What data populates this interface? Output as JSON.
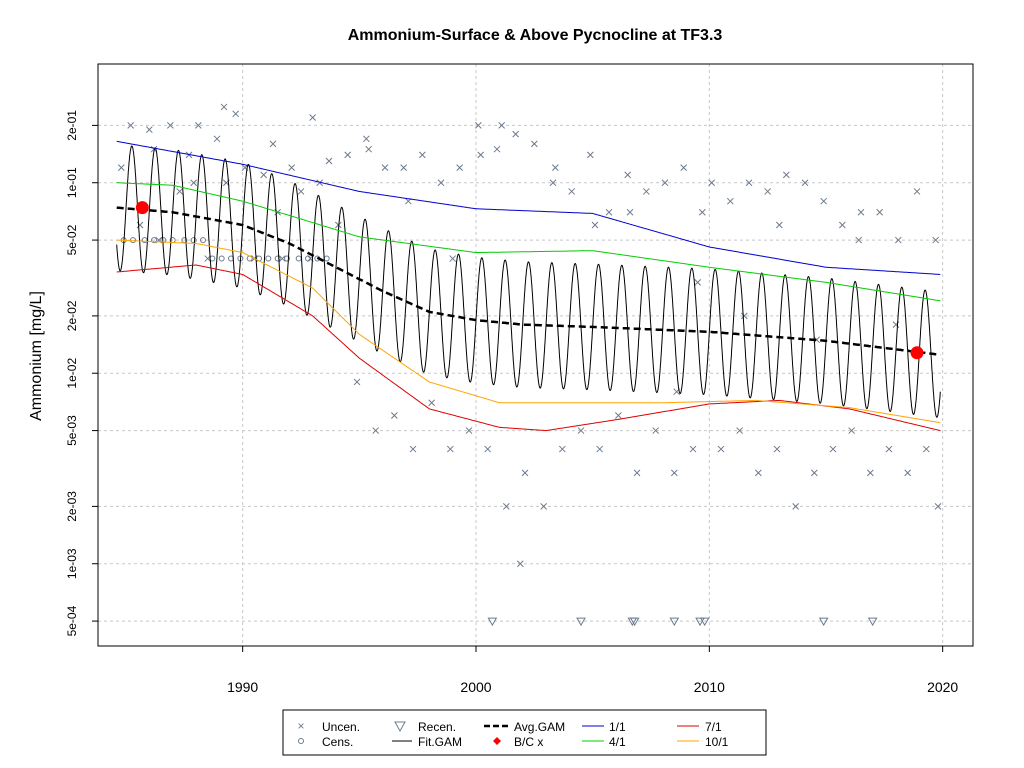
{
  "chart_data": {
    "type": "scatter",
    "title": "Ammonium-Surface & Above Pycnocline at TF3.3",
    "xlabel": "",
    "ylabel": "Ammonium [mg/L]",
    "y_scale": "log",
    "xlim": [
      1983.8,
      2021.3
    ],
    "ylim": [
      0.00037,
      0.42
    ],
    "x_ticks": [
      1990,
      2000,
      2010,
      2020
    ],
    "y_ticks": [
      {
        "value": 0.2,
        "label": "2e-01"
      },
      {
        "value": 0.1,
        "label": "1e-01"
      },
      {
        "value": 0.05,
        "label": "5e-02"
      },
      {
        "value": 0.02,
        "label": "2e-02"
      },
      {
        "value": 0.01,
        "label": "1e-02"
      },
      {
        "value": 0.005,
        "label": "5e-03"
      },
      {
        "value": 0.002,
        "label": "2e-03"
      },
      {
        "value": 0.001,
        "label": "1e-03"
      },
      {
        "value": 0.0005,
        "label": "5e-04"
      }
    ],
    "grid": true,
    "legend_placement": "bottom",
    "colors": {
      "points": "#6b7b8c",
      "fit": "#000000",
      "avg": "#000000",
      "bc": "#ff0000",
      "s1": "#0000cc",
      "s4": "#00cc00",
      "s7": "#dd0000",
      "s10": "#ffa500"
    },
    "series": [
      {
        "name": "1/1",
        "color": "#0000cc",
        "x": [
          1984.6,
          1990,
          1995,
          2000,
          2005,
          2010,
          2015,
          2019.9
        ],
        "y": [
          0.165,
          0.125,
          0.09,
          0.073,
          0.069,
          0.046,
          0.036,
          0.033
        ]
      },
      {
        "name": "4/1",
        "color": "#00cc00",
        "x": [
          1984.6,
          1987,
          1990,
          1995,
          2000,
          2005,
          2010,
          2015,
          2019.9
        ],
        "y": [
          0.1,
          0.097,
          0.08,
          0.052,
          0.043,
          0.044,
          0.036,
          0.03,
          0.024
        ]
      },
      {
        "name": "7/1",
        "color": "#dd0000",
        "x": [
          1984.6,
          1988,
          1990,
          1993,
          1995,
          1998,
          2001,
          2003,
          2006,
          2010,
          2013,
          2016,
          2019.9
        ],
        "y": [
          0.034,
          0.037,
          0.033,
          0.02,
          0.012,
          0.0065,
          0.0052,
          0.005,
          0.0057,
          0.0069,
          0.0072,
          0.0065,
          0.005
        ]
      },
      {
        "name": "10/1",
        "color": "#ffa500",
        "x": [
          1984.6,
          1988,
          1990,
          1993,
          1995,
          1998,
          2001,
          2004,
          2008,
          2012,
          2016,
          2019.9
        ],
        "y": [
          0.05,
          0.048,
          0.043,
          0.028,
          0.016,
          0.009,
          0.007,
          0.007,
          0.007,
          0.0072,
          0.0066,
          0.0055
        ]
      },
      {
        "name": "Avg.GAM",
        "color": "#000000",
        "x": [
          1984.6,
          1987,
          1990,
          1992,
          1994,
          1996,
          1998,
          2000,
          2002,
          2005,
          2010,
          2015,
          2019.9
        ],
        "y": [
          0.074,
          0.07,
          0.06,
          0.048,
          0.036,
          0.027,
          0.021,
          0.019,
          0.018,
          0.0175,
          0.0165,
          0.0148,
          0.0125
        ]
      }
    ],
    "fit_gam": {
      "name": "Fit.GAM",
      "period_years": 1,
      "amplitude_log10": 0.33
    },
    "bc_points": {
      "name": "B/C x",
      "x": [
        1985.7,
        2018.9
      ],
      "y": [
        0.074,
        0.0128
      ]
    },
    "uncensored": {
      "name": "Uncen.",
      "x": [
        1984.8,
        1985.2,
        1985.6,
        1986.0,
        1986.4,
        1986.9,
        1987.3,
        1987.7,
        1988.1,
        1988.5,
        1988.9,
        1989.3,
        1989.7,
        1990.1,
        1990.5,
        1990.9,
        1991.3,
        1991.7,
        1992.1,
        1992.5,
        1992.9,
        1993.3,
        1993.7,
        1994.1,
        1994.5,
        1994.9,
        1995.3,
        1995.7,
        1996.1,
        1996.5,
        1996.9,
        1997.3,
        1997.7,
        1998.1,
        1998.5,
        1998.9,
        1999.3,
        1999.7,
        2000.1,
        2000.5,
        2000.9,
        2001.3,
        2001.7,
        2002.1,
        2002.5,
        2002.9,
        2003.3,
        2003.7,
        2004.1,
        2004.5,
        2004.9,
        2005.3,
        2005.7,
        2006.1,
        2006.5,
        2006.9,
        2007.3,
        2007.7,
        2008.1,
        2008.5,
        2008.9,
        2009.3,
        2009.7,
        2010.1,
        2010.5,
        2010.9,
        2011.3,
        2011.7,
        2012.1,
        2012.5,
        2012.9,
        2013.3,
        2013.7,
        2014.1,
        2014.5,
        2014.9,
        2015.3,
        2015.7,
        2016.1,
        2016.5,
        2016.9,
        2017.3,
        2017.7,
        2018.1,
        2018.5,
        2018.9,
        2019.3,
        2019.7,
        1986.2,
        1987.9,
        1989.2,
        1991.5,
        1993.0,
        1995.4,
        1997.1,
        1999.0,
        2000.2,
        2001.1,
        2001.9,
        2003.4,
        2005.1,
        2006.6,
        2008.6,
        2009.5,
        2011.5,
        2013.0,
        2014.6,
        2016.4,
        2018.0,
        2019.8
      ],
      "y": [
        0.12,
        0.2,
        0.06,
        0.19,
        0.05,
        0.2,
        0.09,
        0.14,
        0.2,
        0.04,
        0.17,
        0.1,
        0.23,
        0.12,
        0.04,
        0.11,
        0.16,
        0.04,
        0.12,
        0.09,
        0.04,
        0.1,
        0.13,
        0.06,
        0.14,
        0.009,
        0.17,
        0.005,
        0.12,
        0.006,
        0.12,
        0.004,
        0.14,
        0.007,
        0.1,
        0.004,
        0.12,
        0.005,
        0.2,
        0.004,
        0.15,
        0.002,
        0.18,
        0.003,
        0.16,
        0.002,
        0.1,
        0.004,
        0.09,
        0.005,
        0.14,
        0.004,
        0.07,
        0.006,
        0.11,
        0.003,
        0.09,
        0.005,
        0.1,
        0.003,
        0.12,
        0.004,
        0.07,
        0.1,
        0.004,
        0.08,
        0.005,
        0.1,
        0.003,
        0.09,
        0.004,
        0.11,
        0.002,
        0.1,
        0.003,
        0.08,
        0.004,
        0.06,
        0.005,
        0.07,
        0.003,
        0.07,
        0.004,
        0.05,
        0.003,
        0.09,
        0.004,
        0.05,
        0.15,
        0.1,
        0.25,
        0.07,
        0.22,
        0.15,
        0.08,
        0.04,
        0.14,
        0.2,
        0.001,
        0.12,
        0.06,
        0.07,
        0.008,
        0.03,
        0.02,
        0.06,
        0.015,
        0.05,
        0.018,
        0.002
      ]
    },
    "censored": {
      "name": "Cens.",
      "x": [
        1984.9,
        1985.3,
        1985.8,
        1986.2,
        1986.6,
        1987.0,
        1987.5,
        1987.9,
        1988.3,
        1988.7,
        1989.1,
        1989.5,
        1989.9,
        1990.3,
        1990.7,
        1991.1,
        1991.5,
        1991.9,
        1992.4,
        1992.8,
        1993.2,
        1993.6
      ],
      "y": [
        0.05,
        0.05,
        0.05,
        0.05,
        0.05,
        0.05,
        0.05,
        0.05,
        0.05,
        0.04,
        0.04,
        0.04,
        0.04,
        0.04,
        0.04,
        0.04,
        0.04,
        0.04,
        0.04,
        0.04,
        0.04,
        0.04
      ]
    },
    "recensored": {
      "name": "Recen.",
      "x": [
        2000.7,
        2004.5,
        2006.7,
        2006.8,
        2008.5,
        2009.6,
        2009.8,
        2014.9,
        2017.0
      ],
      "y": [
        0.0005,
        0.0005,
        0.0005,
        0.0005,
        0.0005,
        0.0005,
        0.0005,
        0.0005,
        0.0005
      ]
    },
    "legend": {
      "uncen": "Uncen.",
      "cens": "Cens.",
      "recen": "Recen.",
      "fitgam": "Fit.GAM",
      "avggam": "Avg.GAM",
      "bc": "B/C x",
      "s1": "1/1",
      "s4": "4/1",
      "s7": "7/1",
      "s10": "10/1"
    }
  }
}
